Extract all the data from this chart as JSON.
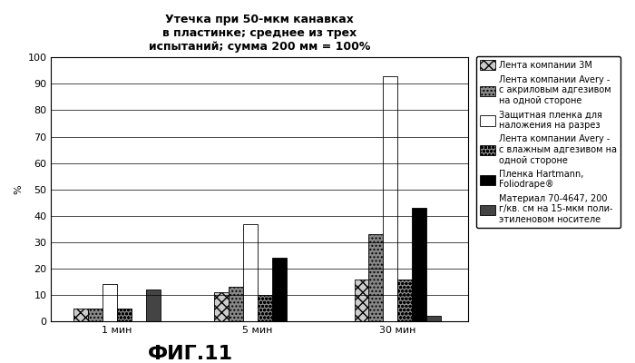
{
  "title": "Утечка при 50-мкм канавках\nв пластинке; среднее из трех\nиспытаний; сумма 200 мм = 100%",
  "xlabel_fig": "ФИГ.11",
  "ylabel": "%",
  "groups": [
    "1 мин",
    "5 мин",
    "30 мин"
  ],
  "series": [
    {
      "label": "Лента компании 3М",
      "values": [
        5,
        11,
        16
      ],
      "hatch": "xxx",
      "facecolor": "#cccccc",
      "edgecolor": "#000000"
    },
    {
      "label": "Лента компании Avery -\nс акриловым адгезивом\nна одной стороне",
      "values": [
        5,
        13,
        33
      ],
      "hatch": "....",
      "facecolor": "#888888",
      "edgecolor": "#000000"
    },
    {
      "label": "Защитная пленка для\nналожения на разрез",
      "values": [
        14,
        37,
        93
      ],
      "hatch": "",
      "facecolor": "#ffffff",
      "edgecolor": "#000000"
    },
    {
      "label": "Лента компании Avery -\nс влажным адгезивом на\nодной стороне",
      "values": [
        5,
        10,
        16
      ],
      "hatch": "oooo",
      "facecolor": "#888888",
      "edgecolor": "#000000"
    },
    {
      "label": "Пленка Hartmann,\nFoliodrape®",
      "values": [
        0,
        24,
        43
      ],
      "hatch": "",
      "facecolor": "#000000",
      "edgecolor": "#000000"
    },
    {
      "label": "Материал 70-4647, 200\nг/кв. см на 15-мкм поли-\nэтиленовом носителе",
      "values": [
        12,
        0,
        2
      ],
      "hatch": "",
      "facecolor": "#444444",
      "edgecolor": "#000000"
    }
  ],
  "ylim": [
    0,
    100
  ],
  "yticks": [
    0,
    10,
    20,
    30,
    40,
    50,
    60,
    70,
    80,
    90,
    100
  ],
  "bar_width": 0.07,
  "group_centers": [
    0.32,
    1.0,
    1.68
  ],
  "figsize": [
    7.0,
    4.0
  ],
  "dpi": 100,
  "title_fontsize": 9,
  "axis_fontsize": 8,
  "legend_fontsize": 7,
  "fig_label_fontsize": 16
}
